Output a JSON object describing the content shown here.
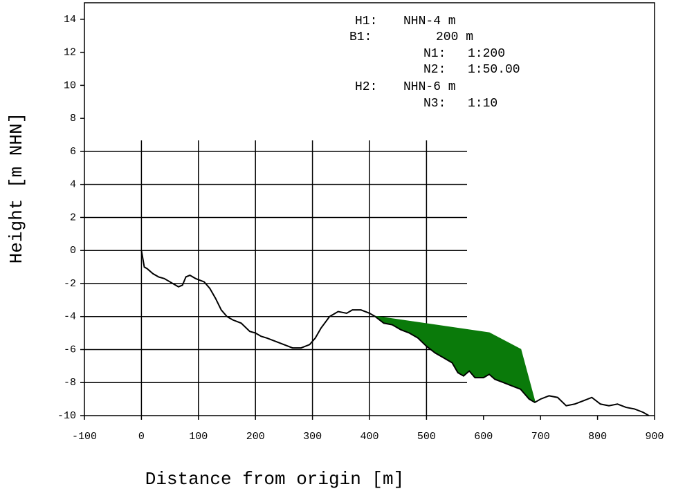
{
  "chart_data": {
    "type": "line",
    "xlabel": "Distance from origin [m]",
    "ylabel": "Height [m NHN]",
    "xlim": [
      -100,
      900
    ],
    "ylim": [
      -10,
      15
    ],
    "xticks": [
      -100,
      0,
      100,
      200,
      300,
      400,
      500,
      600,
      700,
      800,
      900
    ],
    "yticks": [
      -10,
      -8,
      -6,
      -4,
      -2,
      0,
      2,
      4,
      6,
      8,
      10,
      12,
      14
    ],
    "grid": true,
    "annotations": [
      {
        "label": "H1:",
        "value": "NHN-4 m"
      },
      {
        "label": "B1:",
        "value": "200 m"
      },
      {
        "label": "N1:",
        "value": "1:200"
      },
      {
        "label": "N2:",
        "value": "1:50.00"
      },
      {
        "label": "H2:",
        "value": "NHN-6 m"
      },
      {
        "label": "N3:",
        "value": "1:10"
      }
    ],
    "series": [
      {
        "color": "#000000",
        "x": [
          0,
          5,
          10,
          20,
          30,
          40,
          50,
          60,
          65,
          72,
          78,
          85,
          95,
          110,
          120,
          130,
          140,
          150,
          160,
          175,
          190,
          200,
          210,
          220,
          235,
          250,
          265,
          280,
          295,
          305,
          315,
          330,
          345,
          360,
          370,
          385,
          400,
          410,
          425,
          440,
          455,
          470,
          485,
          500,
          515,
          530,
          545,
          555,
          565,
          575,
          585,
          600,
          610,
          620,
          635,
          650,
          665,
          680,
          690,
          700,
          715,
          730,
          745,
          760,
          775,
          790,
          805,
          820,
          835,
          850,
          865,
          880,
          890
        ],
        "values": [
          0,
          -1,
          -1.1,
          -1.4,
          -1.6,
          -1.7,
          -1.9,
          -2.1,
          -2.2,
          -2.1,
          -1.6,
          -1.5,
          -1.7,
          -1.9,
          -2.3,
          -2.9,
          -3.6,
          -4.0,
          -4.2,
          -4.4,
          -4.9,
          -5.0,
          -5.2,
          -5.3,
          -5.5,
          -5.7,
          -5.9,
          -5.9,
          -5.7,
          -5.3,
          -4.7,
          -4.0,
          -3.7,
          -3.8,
          -3.6,
          -3.6,
          -3.8,
          -4.0,
          -4.4,
          -4.5,
          -4.8,
          -5.0,
          -5.3,
          -5.8,
          -6.2,
          -6.5,
          -6.8,
          -7.4,
          -7.6,
          -7.3,
          -7.7,
          -7.7,
          -7.5,
          -7.8,
          -8.0,
          -8.2,
          -8.4,
          -9.0,
          -9.2,
          -9.0,
          -8.8,
          -8.9,
          -9.4,
          -9.3,
          -9.1,
          -8.9,
          -9.3,
          -9.4,
          -9.3,
          -9.5,
          -9.6,
          -9.8,
          -10.0
        ]
      },
      {
        "color": "#0a7a0a",
        "fill": true,
        "x": [
          410,
          610,
          665,
          690
        ],
        "values": [
          -4.0,
          -5.0,
          -6.0,
          -9.2
        ]
      }
    ]
  }
}
